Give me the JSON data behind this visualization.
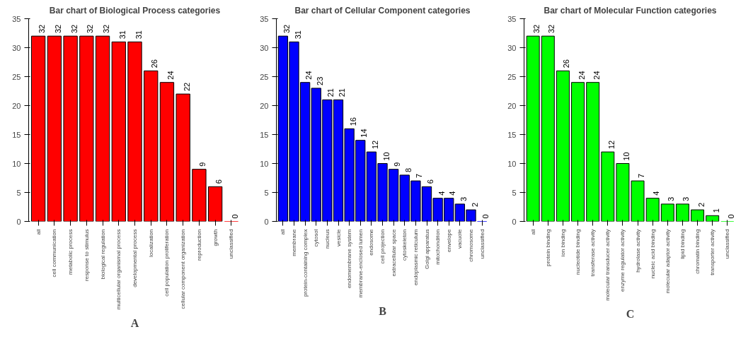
{
  "chart_data": [
    {
      "type": "bar",
      "title": "Bar chart of Biological Process categories",
      "categories": [
        "all",
        "cell communication",
        "metabolic process",
        "response to stimulus",
        "biological regulation",
        "multicellular organismal process",
        "developmental process",
        "localization",
        "cell population proliferation",
        "cellular component organization",
        "reproduction",
        "growth",
        "unclassified"
      ],
      "values": [
        32,
        32,
        32,
        32,
        32,
        31,
        31,
        26,
        24,
        22,
        9,
        6,
        0
      ],
      "color": "#ff0000",
      "ylim": [
        0,
        35
      ],
      "yticks": [
        0,
        5,
        10,
        15,
        20,
        25,
        30,
        35
      ],
      "data_labels": true,
      "grid": false,
      "annotations": [
        "A"
      ]
    },
    {
      "type": "bar",
      "title": "Bar chart of Cellular Component categories",
      "categories": [
        "all",
        "membrane",
        "protein-containing complex",
        "cytosol",
        "nucleus",
        "vesicle",
        "endomembrane system",
        "membrane-enclosed lumen",
        "endosome",
        "cell projection",
        "extracellular space",
        "cytoskeleton",
        "endoplasmic reticulum",
        "Golgi apparatus",
        "mitochondrion",
        "envelope",
        "vacuole",
        "chromosome",
        "unclassified"
      ],
      "values": [
        32,
        31,
        24,
        23,
        21,
        21,
        16,
        14,
        12,
        10,
        9,
        8,
        7,
        6,
        4,
        4,
        3,
        2,
        0
      ],
      "color": "#0000ff",
      "ylim": [
        0,
        35
      ],
      "yticks": [
        0,
        5,
        10,
        15,
        20,
        25,
        30,
        35
      ],
      "data_labels": true,
      "grid": false,
      "annotations": [
        "B"
      ]
    },
    {
      "type": "bar",
      "title": "Bar chart of Molecular Function categories",
      "categories": [
        "all",
        "protein binding",
        "ion binding",
        "nucleotide binding",
        "transferase activity",
        "molecular transducer activity",
        "enzyme regulator activity",
        "hydrolase activity",
        "nucleic acid binding",
        "molecular adaptor activity",
        "lipid binding",
        "chromatin binding",
        "transporter activity",
        "unclassified"
      ],
      "values": [
        32,
        32,
        26,
        24,
        24,
        12,
        10,
        7,
        4,
        3,
        3,
        2,
        1,
        0
      ],
      "color": "#00ff00",
      "ylim": [
        0,
        35
      ],
      "yticks": [
        0,
        5,
        10,
        15,
        20,
        25,
        30,
        35
      ],
      "data_labels": true,
      "grid": false,
      "annotations": [
        "C"
      ]
    }
  ]
}
